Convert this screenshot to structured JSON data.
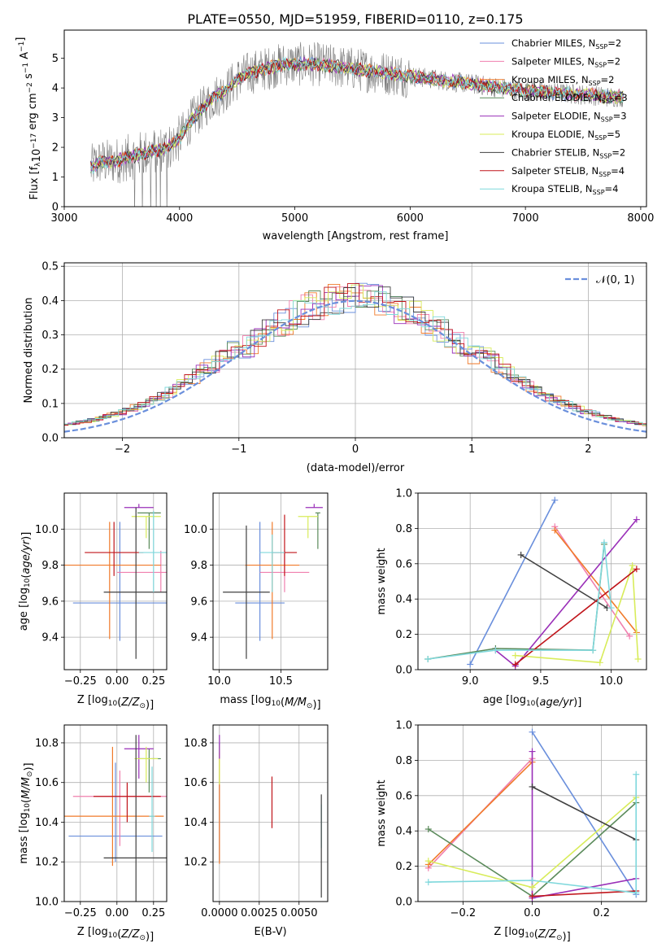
{
  "figure": {
    "title": "PLATE=0550, MJD=51959, FIBERID=0110, z=0.175"
  },
  "colors": {
    "chabrier_miles": "#6a8fdc",
    "salpeter_miles": "#f07fae",
    "kroupa_miles": "#f07a2a",
    "chabrier_elodie": "#5a8a5a",
    "salpeter_elodie": "#9a2fb8",
    "kroupa_elodie": "#d8ec5a",
    "chabrier_stelib": "#404040",
    "salpeter_stelib": "#c0141a",
    "kroupa_stelib": "#7fd8dc",
    "data": "#7f7f7f",
    "normal_curve": "#6a8fdc"
  },
  "legend_models": [
    {
      "label": "Chabrier MILES, N",
      "sub": "SSP",
      "suffix": "=2",
      "color": "#6a8fdc"
    },
    {
      "label": "Salpeter MILES, N",
      "sub": "SSP",
      "suffix": "=2",
      "color": "#f07fae"
    },
    {
      "label": "Kroupa MILES, N",
      "sub": "SSP",
      "suffix": "=2",
      "color": "#f07a2a"
    },
    {
      "label": "Chabrier ELODIE, N",
      "sub": "SSP",
      "suffix": "=3",
      "color": "#5a8a5a"
    },
    {
      "label": "Salpeter ELODIE, N",
      "sub": "SSP",
      "suffix": "=3",
      "color": "#9a2fb8"
    },
    {
      "label": "Kroupa ELODIE, N",
      "sub": "SSP",
      "suffix": "=5",
      "color": "#d8ec5a"
    },
    {
      "label": "Chabrier STELIB, N",
      "sub": "SSP",
      "suffix": "=2",
      "color": "#404040"
    },
    {
      "label": "Salpeter STELIB, N",
      "sub": "SSP",
      "suffix": "=4",
      "color": "#c0141a"
    },
    {
      "label": "Kroupa STELIB, N",
      "sub": "SSP",
      "suffix": "=4",
      "color": "#7fd8dc"
    }
  ],
  "chart_data": [
    {
      "id": "spectrum",
      "type": "line",
      "xlabel": "wavelength [Angstrom, rest frame]",
      "ylabel": "Flux [f_λ 10^-17 erg cm^-2 s^-1 A^-1]",
      "ylabel_parts": {
        "a": "Flux [f",
        "b": "λ",
        "c": "10",
        "d": "−17",
        "e": " erg cm",
        "f": "−2",
        "g": " s",
        "h": "−1",
        "i": " A",
        "j": "−1",
        "k": "]"
      },
      "xlim": [
        3000,
        8050
      ],
      "ylim": [
        0,
        5.95
      ],
      "xticks": [
        3000,
        4000,
        5000,
        6000,
        7000,
        8000
      ],
      "yticks": [
        0,
        1,
        2,
        3,
        4,
        5
      ],
      "grid": false,
      "legend": "right",
      "model_continuum_x": [
        3230,
        3300,
        3400,
        3500,
        3600,
        3700,
        3800,
        3900,
        4000,
        4100,
        4200,
        4300,
        4400,
        4500,
        4600,
        4700,
        4800,
        4900,
        5000,
        5200,
        5400,
        5600,
        5800,
        6000,
        6200,
        6400,
        6600,
        6800,
        7000,
        7200,
        7400,
        7600,
        7700,
        7850
      ],
      "model_continuum_y": [
        1.3,
        1.5,
        1.5,
        1.6,
        1.7,
        1.8,
        1.9,
        2.0,
        2.3,
        2.9,
        3.3,
        3.7,
        3.9,
        4.3,
        4.5,
        4.6,
        4.7,
        4.8,
        4.8,
        4.8,
        4.7,
        4.6,
        4.5,
        4.4,
        4.3,
        4.2,
        4.1,
        4.0,
        3.9,
        3.85,
        3.8,
        3.75,
        3.7,
        3.7
      ]
    },
    {
      "id": "residuals",
      "type": "bar",
      "xlabel": "(data-model)/error",
      "ylabel": "Normed distribution",
      "xlim": [
        -2.5,
        2.5
      ],
      "ylim": [
        0,
        0.51
      ],
      "xticks": [
        -2,
        -1,
        0,
        1,
        2
      ],
      "yticks": [
        0.0,
        0.1,
        0.2,
        0.3,
        0.4,
        0.5
      ],
      "grid": true,
      "legend": "top-right",
      "normal_label": "𝒩(0, 1)"
    },
    {
      "id": "age_vs_Z",
      "type": "scatter",
      "xlabel": "Z [log10(Z/Z⊙)]",
      "ylabel": "age  [log10(age/yr)]",
      "xlim": [
        -0.36,
        0.34
      ],
      "ylim": [
        9.22,
        10.2
      ],
      "xticks": [
        -0.25,
        0.0,
        0.25
      ],
      "yticks": [
        9.4,
        9.6,
        9.8,
        10.0
      ],
      "grid": true,
      "points": [
        {
          "series": "Chabrier MILES",
          "x": 0.02,
          "y": 9.59,
          "xerr": 0.32,
          "yerr_lo": 0.21,
          "yerr_hi": 0.45
        },
        {
          "series": "Salpeter MILES",
          "x": 0.3,
          "y": 9.76,
          "xerr": 0.3,
          "yerr_lo": 0.11,
          "yerr_hi": 0.12
        },
        {
          "series": "Kroupa MILES",
          "x": -0.05,
          "y": 9.8,
          "xerr": 0.35,
          "yerr_lo": 0.41,
          "yerr_hi": 0.24
        },
        {
          "series": "Chabrier ELODIE",
          "x": 0.22,
          "y": 10.09,
          "xerr": 0.08,
          "yerr_lo": 0.2,
          "yerr_hi": 0.0
        },
        {
          "series": "Salpeter ELODIE",
          "x": 0.15,
          "y": 10.12,
          "xerr": 0.1,
          "yerr_lo": 0.0,
          "yerr_hi": 0.02
        },
        {
          "series": "Kroupa ELODIE",
          "x": 0.2,
          "y": 10.07,
          "xerr": 0.1,
          "yerr_lo": 0.12,
          "yerr_hi": 0.0
        },
        {
          "series": "Chabrier STELIB",
          "x": 0.13,
          "y": 9.65,
          "xerr": 0.22,
          "yerr_lo": 0.37,
          "yerr_hi": 0.47
        },
        {
          "series": "Salpeter STELIB",
          "x": -0.02,
          "y": 9.87,
          "xerr": 0.2,
          "yerr_lo": 0.13,
          "yerr_hi": 0.17
        },
        {
          "series": "Kroupa STELIB",
          "x": 0.25,
          "y": 9.87,
          "xerr": 0.1,
          "yerr_lo": 0.22,
          "yerr_hi": 0.23
        }
      ]
    },
    {
      "id": "age_vs_mass",
      "type": "scatter",
      "xlabel": "mass [log10(M/M⊙)]",
      "ylabel": "",
      "xlim": [
        9.95,
        10.88
      ],
      "ylim": [
        9.22,
        10.2
      ],
      "xticks": [
        10.0,
        10.5
      ],
      "yticks": [
        9.4,
        9.6,
        9.8,
        10.0
      ],
      "grid": true,
      "points": [
        {
          "series": "Chabrier MILES",
          "x": 10.33,
          "y": 9.59,
          "xerr": 0.2,
          "yerr_lo": 0.21,
          "yerr_hi": 0.45
        },
        {
          "series": "Salpeter MILES",
          "x": 10.53,
          "y": 9.76,
          "xerr": 0.2,
          "yerr_lo": 0.11,
          "yerr_hi": 0.12
        },
        {
          "series": "Kroupa MILES",
          "x": 10.43,
          "y": 9.8,
          "xerr": 0.22,
          "yerr_lo": 0.41,
          "yerr_hi": 0.24
        },
        {
          "series": "Chabrier ELODIE",
          "x": 10.8,
          "y": 10.09,
          "xerr": 0.02,
          "yerr_lo": 0.2,
          "yerr_hi": 0.0
        },
        {
          "series": "Salpeter ELODIE",
          "x": 10.77,
          "y": 10.12,
          "xerr": 0.07,
          "yerr_lo": 0.0,
          "yerr_hi": 0.02
        },
        {
          "series": "Kroupa ELODIE",
          "x": 10.72,
          "y": 10.07,
          "xerr": 0.08,
          "yerr_lo": 0.12,
          "yerr_hi": 0.0
        },
        {
          "series": "Chabrier STELIB",
          "x": 10.22,
          "y": 9.65,
          "xerr": 0.19,
          "yerr_lo": 0.37,
          "yerr_hi": 0.37
        },
        {
          "series": "Salpeter STELIB",
          "x": 10.53,
          "y": 9.87,
          "xerr": 0.1,
          "yerr_lo": 0.13,
          "yerr_hi": 0.21
        },
        {
          "series": "Kroupa STELIB",
          "x": 10.43,
          "y": 9.87,
          "xerr": 0.1,
          "yerr_lo": 0.22,
          "yerr_hi": 0.1
        }
      ]
    },
    {
      "id": "weight_vs_age",
      "type": "line",
      "xlabel": "age  [log10(age/yr)]",
      "ylabel": "mass weight",
      "xlim": [
        8.63,
        10.25
      ],
      "ylim": [
        0,
        1
      ],
      "xticks": [
        9.0,
        9.5,
        10.0
      ],
      "yticks": [
        0.0,
        0.2,
        0.4,
        0.6,
        0.8,
        1.0
      ],
      "grid": true,
      "series": [
        {
          "name": "Chabrier MILES",
          "x": [
            9.0,
            9.6
          ],
          "y": [
            0.03,
            0.96
          ]
        },
        {
          "name": "Salpeter MILES",
          "x": [
            9.6,
            10.13
          ],
          "y": [
            0.81,
            0.19
          ]
        },
        {
          "name": "Kroupa MILES",
          "x": [
            9.6,
            10.18
          ],
          "y": [
            0.79,
            0.21
          ]
        },
        {
          "name": "Chabrier ELODIE",
          "x": [
            8.7,
            9.18,
            9.87,
            9.95
          ],
          "y": [
            0.06,
            0.12,
            0.11,
            0.71
          ]
        },
        {
          "name": "Salpeter ELODIE",
          "x": [
            9.18,
            9.32,
            10.18
          ],
          "y": [
            0.11,
            0.02,
            0.85
          ]
        },
        {
          "name": "Kroupa ELODIE",
          "x": [
            9.32,
            9.92,
            10.15,
            10.19
          ],
          "y": [
            0.08,
            0.04,
            0.59,
            0.06
          ]
        },
        {
          "name": "Chabrier STELIB",
          "x": [
            9.36,
            9.97
          ],
          "y": [
            0.65,
            0.35
          ]
        },
        {
          "name": "Salpeter STELIB",
          "x": [
            9.32,
            10.18
          ],
          "y": [
            0.03,
            0.57
          ]
        },
        {
          "name": "Kroupa STELIB",
          "x": [
            8.7,
            9.18,
            9.87,
            9.95,
            10.0
          ],
          "y": [
            0.06,
            0.11,
            0.11,
            0.72,
            0.35
          ]
        }
      ]
    },
    {
      "id": "mass_vs_Z",
      "type": "scatter",
      "xlabel": "Z [log10(Z/Z⊙)]",
      "ylabel": "mass [log10(M/M⊙)]",
      "xlim": [
        -0.36,
        0.34
      ],
      "ylim": [
        10.0,
        10.89
      ],
      "xticks": [
        -0.25,
        0.0,
        0.25
      ],
      "yticks": [
        10.0,
        10.2,
        10.4,
        10.6,
        10.8
      ],
      "grid": true,
      "points": [
        {
          "series": "Chabrier MILES",
          "x": -0.01,
          "y": 10.33,
          "xerr": 0.32,
          "yerr_lo": 0.13,
          "yerr_hi": 0.37
        },
        {
          "series": "Salpeter MILES",
          "x": 0.02,
          "y": 10.53,
          "xerr": 0.32,
          "yerr_lo": 0.25,
          "yerr_hi": 0.13
        },
        {
          "series": "Kroupa MILES",
          "x": -0.03,
          "y": 10.43,
          "xerr": 0.35,
          "yerr_lo": 0.25,
          "yerr_hi": 0.35
        },
        {
          "series": "Chabrier ELODIE",
          "x": 0.22,
          "y": 10.72,
          "xerr": 0.08,
          "yerr_lo": 0.17,
          "yerr_hi": 0.05
        },
        {
          "series": "Salpeter ELODIE",
          "x": 0.15,
          "y": 10.77,
          "xerr": 0.1,
          "yerr_lo": 0.15,
          "yerr_hi": 0.07
        },
        {
          "series": "Kroupa ELODIE",
          "x": 0.2,
          "y": 10.72,
          "xerr": 0.08,
          "yerr_lo": 0.12,
          "yerr_hi": 0.06
        },
        {
          "series": "Chabrier STELIB",
          "x": 0.13,
          "y": 10.22,
          "xerr": 0.22,
          "yerr_lo": 0.22,
          "yerr_hi": 0.62
        },
        {
          "series": "Salpeter STELIB",
          "x": 0.07,
          "y": 10.53,
          "xerr": 0.23,
          "yerr_lo": 0.13,
          "yerr_hi": 0.07
        },
        {
          "series": "Kroupa STELIB",
          "x": 0.24,
          "y": 10.43,
          "xerr": 0.02,
          "yerr_lo": 0.18,
          "yerr_hi": 0.25
        }
      ]
    },
    {
      "id": "mass_vs_ebv",
      "type": "scatter",
      "xlabel": "E(B-V)",
      "ylabel": "",
      "xlim": [
        -0.0004,
        0.0068
      ],
      "ylim": [
        10.0,
        10.89
      ],
      "xticks": [
        0.0,
        0.0025,
        0.005
      ],
      "xticklabels": [
        "0.0000",
        "0.0025",
        "0.0050"
      ],
      "yticks": [
        10.2,
        10.4,
        10.6,
        10.8
      ],
      "grid": true,
      "points": [
        {
          "series": "Chabrier MILES",
          "x": 0.0,
          "y": 10.5,
          "yerr_lo": 0.3,
          "yerr_hi": 0.3
        },
        {
          "series": "Kroupa MILES",
          "x": 0.0,
          "y": 10.45,
          "yerr_lo": 0.26,
          "yerr_hi": 0.3
        },
        {
          "series": "Kroupa ELODIE",
          "x": 0.0,
          "y": 10.72,
          "yerr_lo": 0.13,
          "yerr_hi": 0.07
        },
        {
          "series": "Salpeter ELODIE",
          "x": 0.0,
          "y": 10.78,
          "yerr_lo": 0.06,
          "yerr_hi": 0.06
        },
        {
          "series": "Salpeter STELIB",
          "x": 0.0033,
          "y": 10.5,
          "yerr_lo": 0.13,
          "yerr_hi": 0.13
        },
        {
          "series": "Kroupa STELIB",
          "x": 0.0064,
          "y": 10.37,
          "yerr_lo": 0.1,
          "yerr_hi": 0.12
        },
        {
          "series": "Chabrier STELIB",
          "x": 0.0064,
          "y": 10.27,
          "yerr_lo": 0.25,
          "yerr_hi": 0.27
        }
      ]
    },
    {
      "id": "weight_vs_Z",
      "type": "line",
      "xlabel": "Z [log10(Z/Z⊙)]",
      "ylabel": "mass weight",
      "xlim": [
        -0.33,
        0.33
      ],
      "ylim": [
        0,
        1
      ],
      "xticks": [
        -0.2,
        0.0,
        0.2
      ],
      "yticks": [
        0.0,
        0.2,
        0.4,
        0.6,
        0.8,
        1.0
      ],
      "grid": true,
      "series": [
        {
          "name": "Chabrier MILES",
          "x": [
            0.0,
            0.3
          ],
          "y": [
            0.96,
            0.04
          ]
        },
        {
          "name": "Salpeter MILES",
          "x": [
            -0.3,
            0.0
          ],
          "y": [
            0.19,
            0.81
          ]
        },
        {
          "name": "Kroupa MILES",
          "x": [
            -0.3,
            0.0
          ],
          "y": [
            0.21,
            0.79
          ]
        },
        {
          "name": "Chabrier ELODIE",
          "x": [
            -0.3,
            0.0,
            0.3
          ],
          "y": [
            0.41,
            0.03,
            0.56
          ]
        },
        {
          "name": "Salpeter ELODIE",
          "x": [
            0.0,
            0.0,
            0.3
          ],
          "y": [
            0.85,
            0.02,
            0.13
          ]
        },
        {
          "name": "Kroupa ELODIE",
          "x": [
            -0.3,
            0.0,
            0.3
          ],
          "y": [
            0.23,
            0.08,
            0.59
          ]
        },
        {
          "name": "Chabrier STELIB",
          "x": [
            0.0,
            0.3
          ],
          "y": [
            0.65,
            0.35
          ]
        },
        {
          "name": "Salpeter STELIB",
          "x": [
            0.0,
            0.3
          ],
          "y": [
            0.03,
            0.06
          ]
        },
        {
          "name": "Kroupa STELIB",
          "x": [
            -0.3,
            0.0,
            0.3,
            0.3
          ],
          "y": [
            0.11,
            0.12,
            0.05,
            0.72
          ]
        }
      ]
    }
  ],
  "text": {
    "spectrum_xlabel": "wavelength [Angstrom, rest frame]",
    "resid_xlabel": "(data-model)/error",
    "resid_ylabel": "Normed distribution",
    "normal_label": "𝒩(0, 1)",
    "age_label": "age  [log",
    "age_label_sub": "10",
    "age_label_rest": "(age/yr)]",
    "mass_label": "mass [log",
    "mass_label_sub": "10",
    "mass_label_rest": "(M/M",
    "Z_label": "Z [log",
    "Z_label_sub": "10",
    "Z_label_rest": "(Z/Z",
    "sun": "⊙",
    "close": ")]",
    "mass_weight": "mass weight",
    "ebv": "E(B-V)"
  }
}
